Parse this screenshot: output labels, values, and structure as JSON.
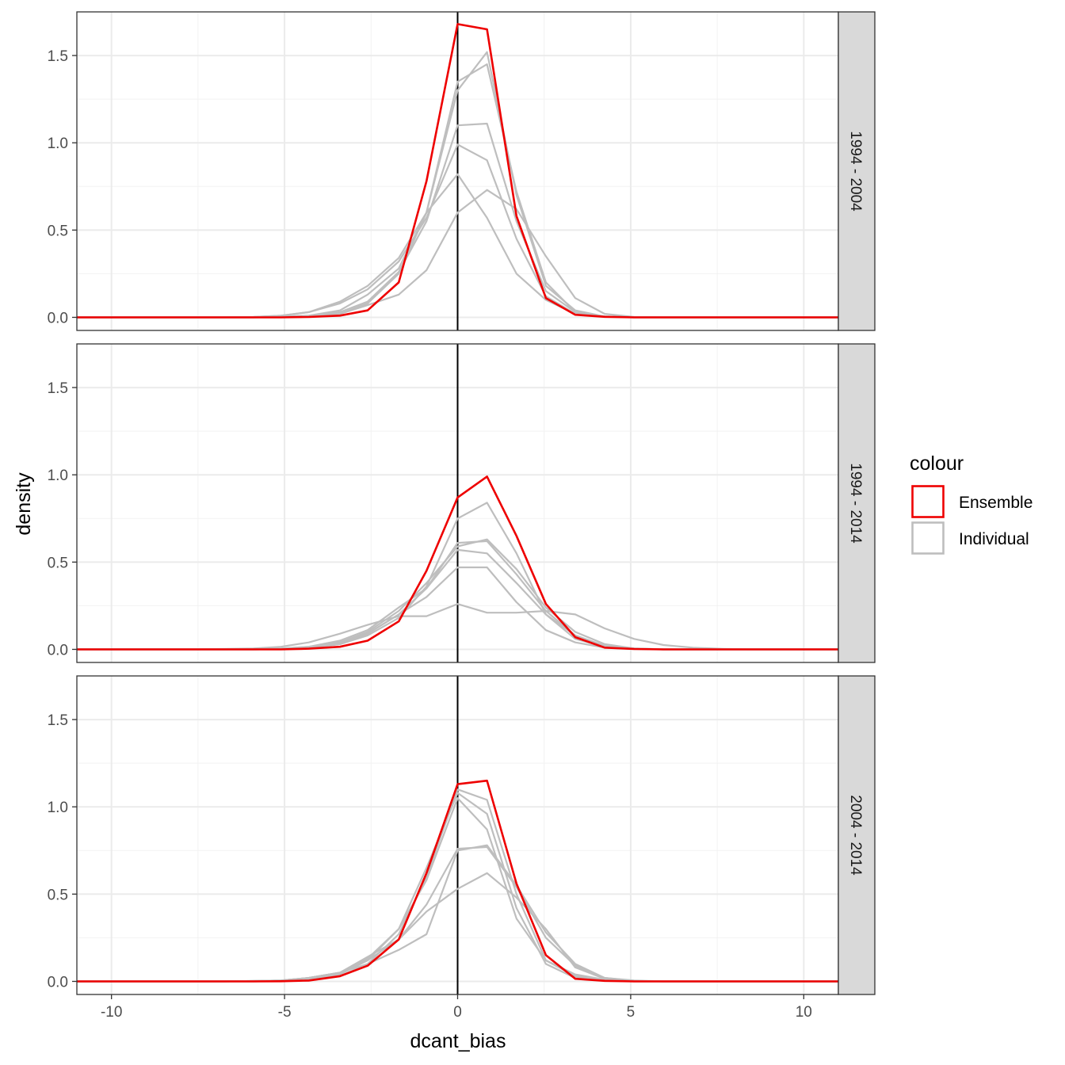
{
  "chart_data": {
    "type": "line",
    "xlabel": "dcant_bias",
    "ylabel": "density",
    "xlim": [
      -11,
      11
    ],
    "ylim": [
      -0.075,
      1.75
    ],
    "x_ticks": [
      -10,
      -5,
      0,
      5,
      10
    ],
    "x_tick_labels": [
      "-10",
      "-5",
      "0",
      "5",
      "10"
    ],
    "y_ticks": [
      0,
      0.5,
      1,
      1.5
    ],
    "y_tick_labels": [
      "0.0",
      "0.5",
      "1.0",
      "1.5"
    ],
    "vline_x": 0,
    "grid": true,
    "legend": {
      "title": "colour",
      "position": "right",
      "entries": [
        {
          "label": "Ensemble",
          "color": "#ee0000"
        },
        {
          "label": "Individual",
          "color": "#bebebe"
        }
      ]
    },
    "x": [
      -11,
      -10.2,
      -9.3,
      -8.5,
      -7.6,
      -6.8,
      -5.9,
      -5.1,
      -4.3,
      -3.4,
      -2.6,
      -1.7,
      -0.9,
      0,
      0.85,
      1.7,
      2.55,
      3.4,
      4.25,
      5.1,
      5.95,
      6.8,
      7.65,
      8.5,
      9.35,
      10.2,
      11
    ],
    "panels": [
      {
        "strip": "1994 - 2004",
        "series": [
          {
            "group": "Individual",
            "values": [
              0,
              0,
              0,
              0,
              0,
              0,
              0,
              0.005,
              0.01,
              0.04,
              0.13,
              0.28,
              0.6,
              1.3,
              1.52,
              0.7,
              0.18,
              0.04,
              0.005,
              0,
              0,
              0,
              0,
              0,
              0,
              0,
              0
            ]
          },
          {
            "group": "Individual",
            "values": [
              0,
              0,
              0,
              0,
              0,
              0,
              0,
              0,
              0.005,
              0.02,
              0.08,
              0.25,
              0.6,
              1.35,
              1.45,
              0.72,
              0.2,
              0.03,
              0.005,
              0,
              0,
              0,
              0,
              0,
              0,
              0,
              0
            ]
          },
          {
            "group": "Individual",
            "values": [
              0,
              0,
              0,
              0,
              0,
              0,
              0,
              0.005,
              0.01,
              0.03,
              0.09,
              0.26,
              0.55,
              1.1,
              1.11,
              0.55,
              0.15,
              0.03,
              0.005,
              0,
              0,
              0,
              0,
              0,
              0,
              0,
              0
            ]
          },
          {
            "group": "Individual",
            "values": [
              0,
              0,
              0,
              0,
              0,
              0,
              0.002,
              0.01,
              0.03,
              0.08,
              0.16,
              0.32,
              0.57,
              0.99,
              0.9,
              0.45,
              0.12,
              0.02,
              0.005,
              0,
              0,
              0,
              0,
              0,
              0,
              0,
              0
            ]
          },
          {
            "group": "Individual",
            "values": [
              0,
              0,
              0,
              0,
              0,
              0,
              0.002,
              0.01,
              0.03,
              0.09,
              0.18,
              0.34,
              0.6,
              0.82,
              0.57,
              0.25,
              0.1,
              0.02,
              0.005,
              0,
              0,
              0,
              0,
              0,
              0,
              0,
              0
            ]
          },
          {
            "group": "Individual",
            "values": [
              0,
              0,
              0,
              0,
              0,
              0,
              0,
              0.002,
              0.005,
              0.02,
              0.07,
              0.13,
              0.27,
              0.6,
              0.73,
              0.62,
              0.35,
              0.11,
              0.02,
              0.002,
              0,
              0,
              0,
              0,
              0,
              0,
              0
            ]
          },
          {
            "group": "Ensemble",
            "values": [
              0,
              0,
              0,
              0,
              0,
              0,
              0,
              0,
              0.002,
              0.01,
              0.04,
              0.2,
              0.78,
              1.68,
              1.65,
              0.58,
              0.11,
              0.015,
              0.003,
              0,
              0,
              0,
              0,
              0,
              0,
              0,
              0
            ]
          }
        ]
      },
      {
        "strip": "1994 - 2014",
        "series": [
          {
            "group": "Individual",
            "values": [
              0,
              0,
              0,
              0,
              0,
              0,
              0,
              0.002,
              0.01,
              0.03,
              0.08,
              0.18,
              0.36,
              0.75,
              0.84,
              0.55,
              0.2,
              0.06,
              0.015,
              0.003,
              0,
              0,
              0,
              0,
              0,
              0,
              0
            ]
          },
          {
            "group": "Individual",
            "values": [
              0,
              0,
              0,
              0,
              0,
              0,
              0,
              0.002,
              0.01,
              0.03,
              0.09,
              0.2,
              0.35,
              0.61,
              0.62,
              0.43,
              0.22,
              0.08,
              0.02,
              0.005,
              0,
              0,
              0,
              0,
              0,
              0,
              0
            ]
          },
          {
            "group": "Individual",
            "values": [
              0,
              0,
              0,
              0,
              0,
              0,
              0.002,
              0.005,
              0.015,
              0.04,
              0.1,
              0.22,
              0.38,
              0.59,
              0.63,
              0.46,
              0.24,
              0.1,
              0.03,
              0.005,
              0,
              0,
              0,
              0,
              0,
              0,
              0
            ]
          },
          {
            "group": "Individual",
            "values": [
              0,
              0,
              0,
              0,
              0,
              0,
              0.002,
              0.005,
              0.015,
              0.05,
              0.11,
              0.24,
              0.35,
              0.57,
              0.55,
              0.38,
              0.2,
              0.08,
              0.02,
              0.005,
              0,
              0,
              0,
              0,
              0,
              0,
              0
            ]
          },
          {
            "group": "Individual",
            "values": [
              0,
              0,
              0,
              0,
              0,
              0,
              0,
              0.002,
              0.01,
              0.04,
              0.09,
              0.2,
              0.3,
              0.47,
              0.47,
              0.27,
              0.11,
              0.04,
              0.01,
              0.002,
              0,
              0,
              0,
              0,
              0,
              0,
              0
            ]
          },
          {
            "group": "Individual",
            "values": [
              0,
              0,
              0,
              0,
              0,
              0.002,
              0.005,
              0.015,
              0.04,
              0.09,
              0.14,
              0.19,
              0.19,
              0.26,
              0.21,
              0.21,
              0.22,
              0.2,
              0.12,
              0.06,
              0.025,
              0.01,
              0.003,
              0,
              0,
              0,
              0
            ]
          },
          {
            "group": "Ensemble",
            "values": [
              0,
              0,
              0,
              0,
              0,
              0,
              0,
              0,
              0.004,
              0.015,
              0.05,
              0.16,
              0.45,
              0.87,
              0.99,
              0.65,
              0.26,
              0.07,
              0.01,
              0.002,
              0,
              0,
              0,
              0,
              0,
              0,
              0
            ]
          }
        ]
      },
      {
        "strip": "2004 - 2014",
        "series": [
          {
            "group": "Individual",
            "values": [
              0,
              0,
              0,
              0,
              0,
              0,
              0,
              0.002,
              0.01,
              0.03,
              0.1,
              0.27,
              0.6,
              1.1,
              1.04,
              0.5,
              0.12,
              0.03,
              0.005,
              0,
              0,
              0,
              0,
              0,
              0,
              0,
              0
            ]
          },
          {
            "group": "Individual",
            "values": [
              0,
              0,
              0,
              0,
              0,
              0,
              0,
              0.002,
              0.01,
              0.04,
              0.12,
              0.3,
              0.65,
              1.08,
              0.96,
              0.42,
              0.1,
              0.02,
              0.005,
              0,
              0,
              0,
              0,
              0,
              0,
              0,
              0
            ]
          },
          {
            "group": "Individual",
            "values": [
              0,
              0,
              0,
              0,
              0,
              0,
              0.002,
              0.005,
              0.02,
              0.05,
              0.13,
              0.3,
              0.58,
              1.05,
              0.87,
              0.36,
              0.12,
              0.04,
              0.01,
              0.002,
              0,
              0,
              0,
              0,
              0,
              0,
              0
            ]
          },
          {
            "group": "Individual",
            "values": [
              0,
              0,
              0,
              0,
              0,
              0,
              0.002,
              0.005,
              0.02,
              0.05,
              0.14,
              0.24,
              0.44,
              0.76,
              0.77,
              0.54,
              0.25,
              0.09,
              0.02,
              0.005,
              0,
              0,
              0,
              0,
              0,
              0,
              0
            ]
          },
          {
            "group": "Individual",
            "values": [
              0,
              0,
              0,
              0,
              0,
              0,
              0.002,
              0.005,
              0.02,
              0.05,
              0.12,
              0.24,
              0.4,
              0.53,
              0.62,
              0.48,
              0.3,
              0.08,
              0.015,
              0.003,
              0,
              0,
              0,
              0,
              0,
              0,
              0
            ]
          },
          {
            "group": "Individual",
            "values": [
              0,
              0,
              0,
              0,
              0,
              0,
              0.002,
              0.005,
              0.02,
              0.05,
              0.1,
              0.18,
              0.27,
              0.75,
              0.78,
              0.55,
              0.28,
              0.1,
              0.02,
              0.003,
              0,
              0,
              0,
              0,
              0,
              0,
              0
            ]
          },
          {
            "group": "Ensemble",
            "values": [
              0,
              0,
              0,
              0,
              0,
              0,
              0,
              0.001,
              0.005,
              0.03,
              0.09,
              0.24,
              0.62,
              1.13,
              1.15,
              0.56,
              0.15,
              0.015,
              0.003,
              0,
              0,
              0,
              0,
              0,
              0,
              0,
              0
            ]
          }
        ]
      }
    ]
  }
}
